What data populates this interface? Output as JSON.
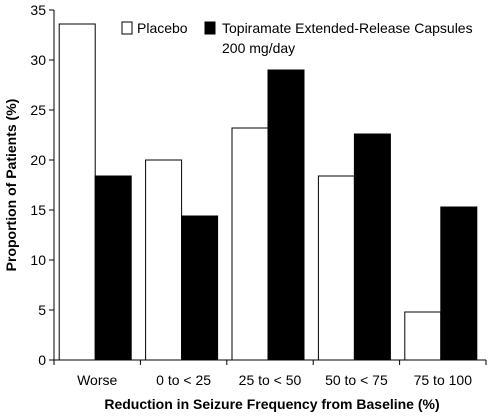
{
  "chart_data": {
    "type": "bar",
    "categories": [
      "Worse",
      "0 to < 25",
      "25 to < 50",
      "50 to < 75",
      "75 to 100"
    ],
    "series": [
      {
        "name": "Placebo",
        "values": [
          33.6,
          20.0,
          23.2,
          18.4,
          4.8
        ],
        "color": "#ffffff"
      },
      {
        "name": "Topiramate Extended-Release Capsules 200 mg/day",
        "values": [
          18.4,
          14.4,
          29.0,
          22.6,
          15.3
        ],
        "color": "#000000"
      }
    ],
    "xlabel": "Reduction in Seizure Frequency from Baseline (%)",
    "ylabel": "Proportion of Patients (%)",
    "ylim": [
      0,
      35
    ],
    "yticks": [
      0,
      5,
      10,
      15,
      20,
      25,
      30,
      35
    ],
    "grid": false,
    "legend_position": "top",
    "legend": {
      "placebo": "Placebo",
      "drug_line1": "Topiramate Extended-Release Capsules",
      "drug_line2": "200 mg/day"
    }
  }
}
